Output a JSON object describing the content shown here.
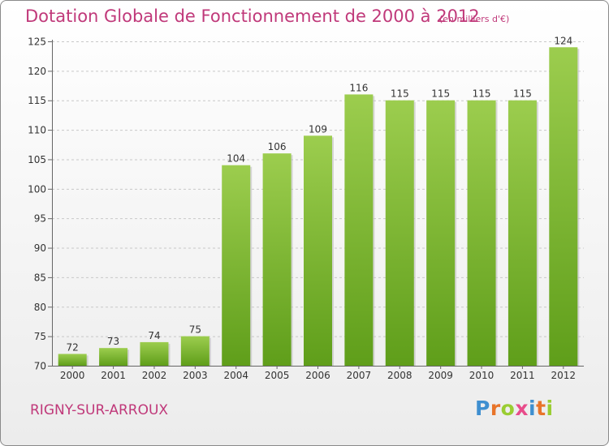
{
  "header": {
    "title": "Dotation Globale de Fonctionnement de 2000 à 2012",
    "subtitle": "(en milliers d'€)"
  },
  "footer": {
    "commune": "RIGNY-SUR-ARROUX",
    "logo": "Proxiti"
  },
  "colors": {
    "title": "#c0397a",
    "bar_top": "#9ccd4e",
    "bar_bottom": "#5f9e1a",
    "logo": [
      "#3f8fd0",
      "#e8742a",
      "#9acd32",
      "#e84c8a",
      "#3f8fd0",
      "#e8742a",
      "#9acd32"
    ]
  },
  "chart_data": {
    "type": "bar",
    "title": "Dotation Globale de Fonctionnement de 2000 à 2012",
    "categories": [
      "2000",
      "2001",
      "2002",
      "2003",
      "2004",
      "2005",
      "2006",
      "2007",
      "2008",
      "2009",
      "2010",
      "2011",
      "2012"
    ],
    "values": [
      72,
      73,
      74,
      75,
      104,
      106,
      109,
      116,
      115,
      115,
      115,
      115,
      124
    ],
    "xlabel": "",
    "ylabel": "",
    "ylim": [
      70,
      125
    ],
    "yticks": [
      70,
      75,
      80,
      85,
      90,
      95,
      100,
      105,
      110,
      115,
      120,
      125
    ],
    "grid": true,
    "legend": "none"
  }
}
